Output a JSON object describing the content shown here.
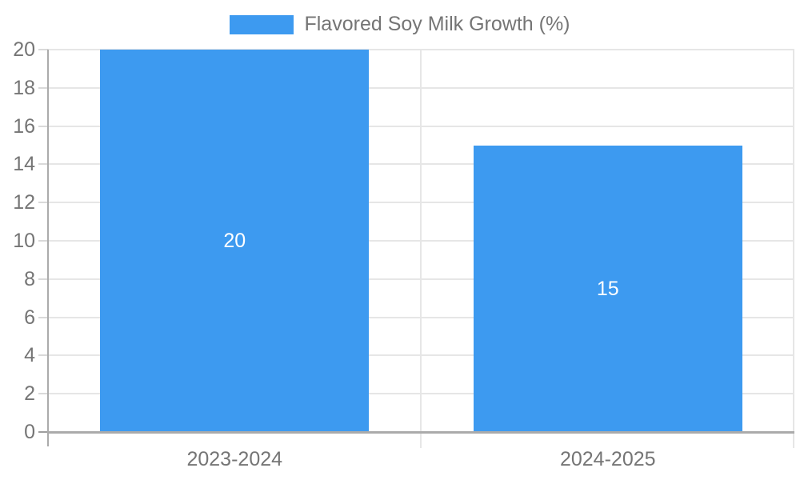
{
  "chart_data": {
    "type": "bar",
    "legend": "Flavored Soy Milk Growth (%)",
    "legend_position": "top-center",
    "categories": [
      "2023-2024",
      "2024-2025"
    ],
    "values": [
      20,
      15
    ],
    "series": [
      {
        "name": "Flavored Soy Milk Growth (%)",
        "values": [
          20,
          15
        ]
      }
    ],
    "ylim": [
      0,
      20
    ],
    "ytick_step": 2,
    "yticks": [
      0,
      2,
      4,
      6,
      8,
      10,
      12,
      14,
      16,
      18,
      20
    ],
    "grid": true,
    "data_labels_inside_bars": true,
    "colors": {
      "bar": "#3D9AF0",
      "axis_text": "#757575",
      "data_label": "#ffffff",
      "gridline": "#e6e6e6",
      "tick": "#d9d9d9",
      "zero_tick": "#9e9e9e",
      "axis_line": "#ababab"
    }
  }
}
